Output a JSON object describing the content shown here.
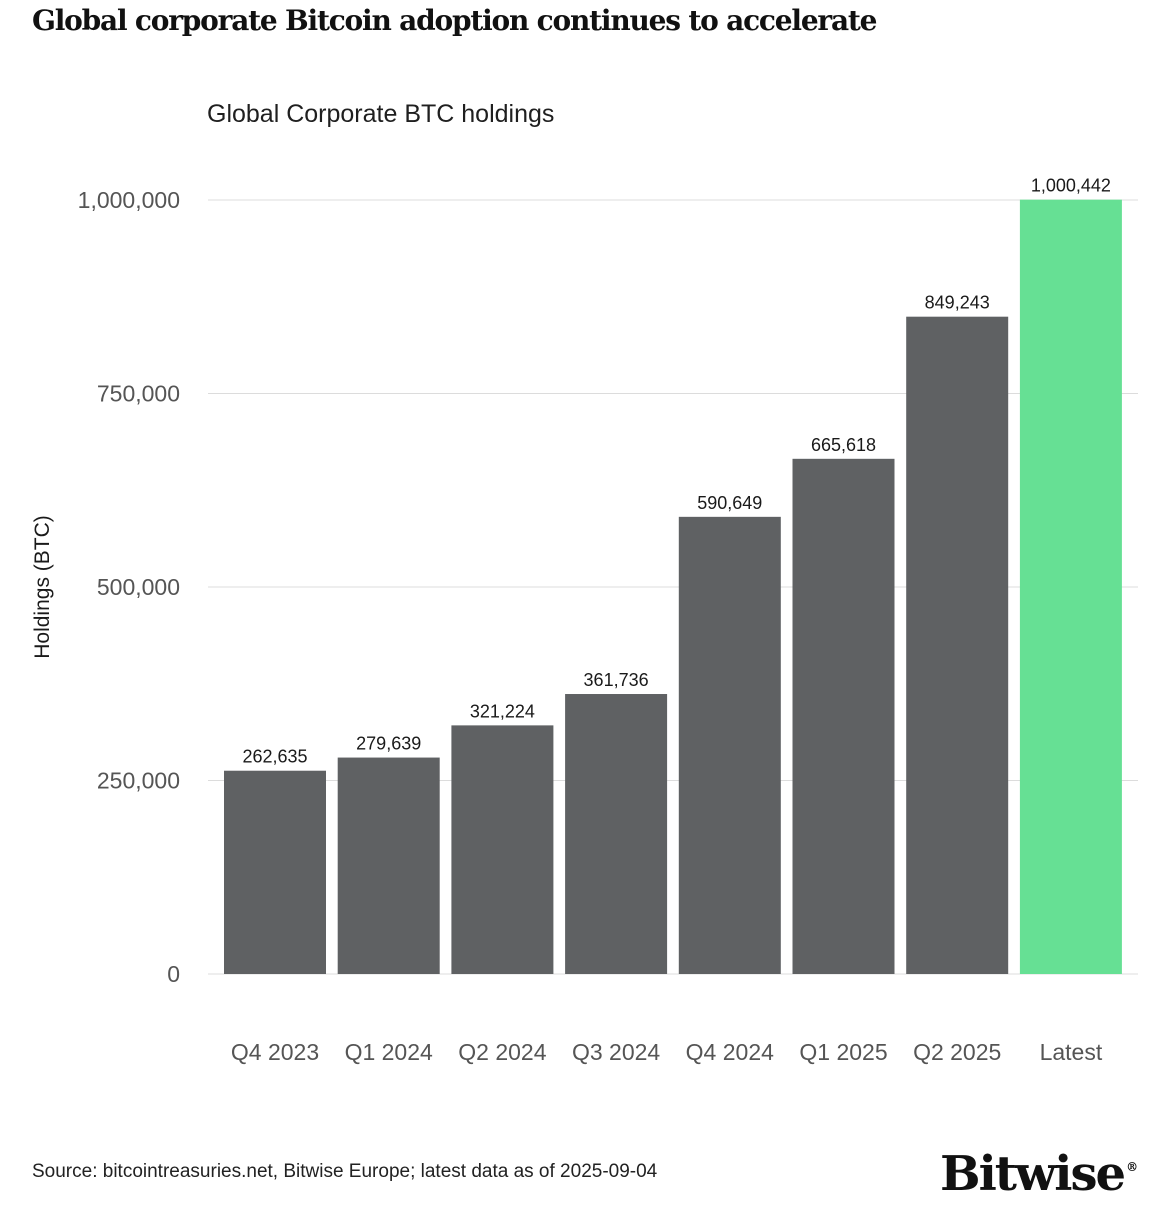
{
  "headline": "Global corporate Bitcoin adoption continues to accelerate",
  "source": "Source: bitcointreasuries.net, Bitwise Europe; latest data as of 2025-09-04",
  "brand": {
    "name": "Bitwise",
    "mark": "®"
  },
  "chart_data": {
    "type": "bar",
    "title": "Global Corporate BTC holdings",
    "xlabel": "",
    "ylabel": "Holdings (BTC)",
    "categories": [
      "Q4 2023",
      "Q1 2024",
      "Q2 2024",
      "Q3 2024",
      "Q4 2024",
      "Q1 2025",
      "Q2 2025",
      "Latest"
    ],
    "values": [
      262635,
      279639,
      321224,
      361736,
      590649,
      665618,
      849243,
      1000442
    ],
    "data_labels": [
      "262,635",
      "279,639",
      "321,224",
      "361,736",
      "590,649",
      "665,618",
      "849,243",
      "1,000,442"
    ],
    "ylim": [
      0,
      1000000
    ],
    "yticks": [
      0,
      250000,
      500000,
      750000,
      1000000
    ],
    "ytick_labels": [
      "0",
      "250,000",
      "500,000",
      "750,000",
      "1,000,000"
    ],
    "grid": true,
    "legend": "none",
    "colors": {
      "bar": "#5f6163",
      "highlight": "#66e094",
      "grid": "#dcdcdc",
      "tick_text": "#555555",
      "label_text": "#1a1a1a"
    },
    "highlight_index": 7
  }
}
